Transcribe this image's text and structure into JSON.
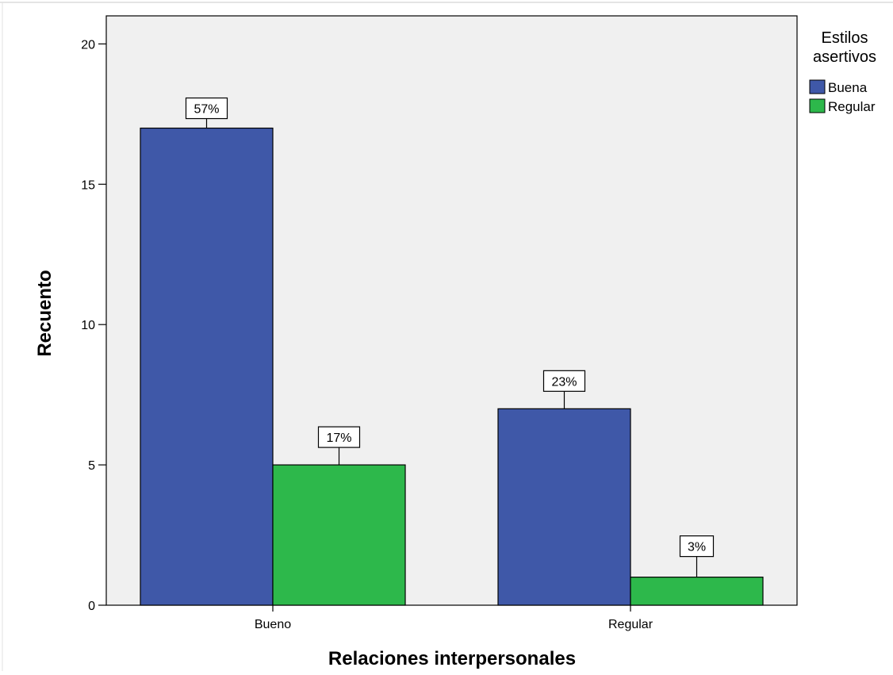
{
  "chart_data": {
    "type": "bar",
    "xlabel": "Relaciones interpersonales",
    "ylabel": "Recuento",
    "categories": [
      "Bueno",
      "Regular"
    ],
    "series": [
      {
        "name": "Buena",
        "values": [
          17,
          7
        ],
        "labels": [
          "57%",
          "23%"
        ],
        "color": "#3f58a8"
      },
      {
        "name": "Regular",
        "values": [
          5,
          1
        ],
        "labels": [
          "17%",
          "3%"
        ],
        "color": "#2db84b"
      }
    ],
    "ylim": [
      0,
      21
    ],
    "yticks": [
      "0",
      "5",
      "10",
      "15",
      "20"
    ],
    "legend": {
      "title_lines": [
        "Estilos",
        "asertivos"
      ],
      "placement": "right"
    },
    "colors": {
      "plot_background": "#f0f0f0",
      "axis": "#000000"
    }
  }
}
